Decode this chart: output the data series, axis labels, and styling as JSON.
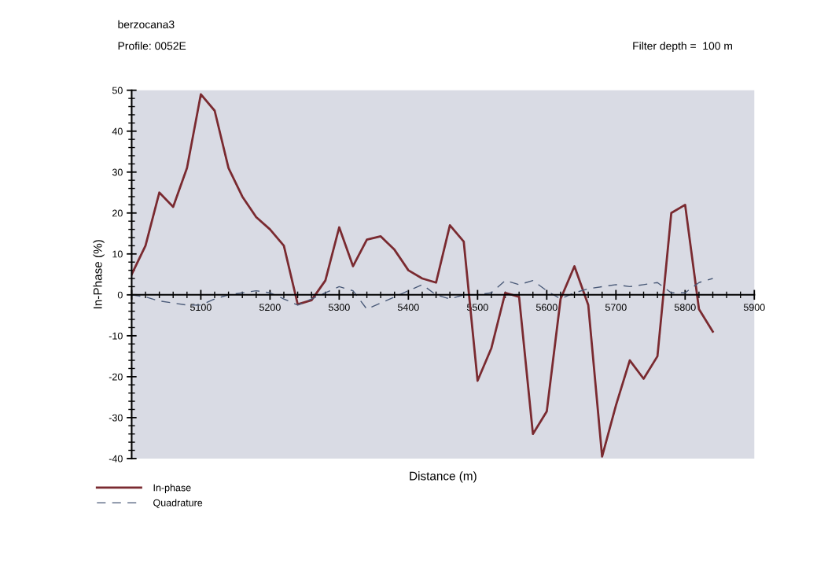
{
  "chart_data": {
    "type": "line",
    "title": "berzocana3",
    "subtitle": "Profile: 0052E",
    "xlabel": "Distance (m)",
    "ylabel": "In-Phase (%)",
    "annotations": [
      "Filter depth =  100 m"
    ],
    "x": [
      5000,
      5020,
      5040,
      5060,
      5080,
      5100,
      5120,
      5140,
      5160,
      5180,
      5200,
      5220,
      5240,
      5260,
      5280,
      5300,
      5320,
      5340,
      5360,
      5380,
      5400,
      5420,
      5440,
      5460,
      5480,
      5500,
      5520,
      5540,
      5560,
      5580,
      5600,
      5620,
      5640,
      5660,
      5680,
      5700,
      5720,
      5740,
      5760,
      5780,
      5800,
      5820,
      5840
    ],
    "series": [
      {
        "name": "In-phase",
        "color": "#7a2a30",
        "line_style": "solid",
        "values": [
          5,
          12,
          25,
          21.5,
          31,
          49,
          45,
          31,
          24,
          19,
          16,
          12,
          -2.3,
          -1.3,
          3.5,
          16.5,
          7,
          13.5,
          14.3,
          11,
          6,
          4,
          3,
          17,
          13,
          -21,
          -13,
          0.5,
          -0.5,
          -34,
          -28.5,
          -1,
          7,
          -2.5,
          -39.5,
          -27,
          -16,
          -20.5,
          -15,
          20,
          22,
          -3.5,
          -9
        ]
      },
      {
        "name": "Quadrature",
        "color": "#4a5a78",
        "line_style": "dashed",
        "values": [
          0,
          -0.5,
          -1.5,
          -2,
          -2.5,
          -2.5,
          -1,
          0,
          0.5,
          1,
          0.5,
          -1,
          -2.5,
          -1,
          0.5,
          2,
          1,
          -3.5,
          -2,
          -0.5,
          1,
          2.5,
          0,
          -1,
          0,
          0,
          0.5,
          3.5,
          2.5,
          3.5,
          1,
          -1,
          0.5,
          1.5,
          2,
          2.5,
          2,
          2.5,
          3,
          0.5,
          0.5,
          3,
          4
        ]
      }
    ],
    "xlim": [
      5000,
      5900
    ],
    "xticks": [
      {
        "value": 5000,
        "label": null
      },
      5100,
      5200,
      5300,
      5400,
      5500,
      5600,
      5700,
      5800,
      5900
    ],
    "ylim": [
      -40,
      50
    ],
    "yticks": [
      -40,
      -30,
      -20,
      -10,
      0,
      10,
      20,
      30,
      40,
      50
    ],
    "grid": false,
    "legend": "bottom left",
    "marker": "none"
  }
}
